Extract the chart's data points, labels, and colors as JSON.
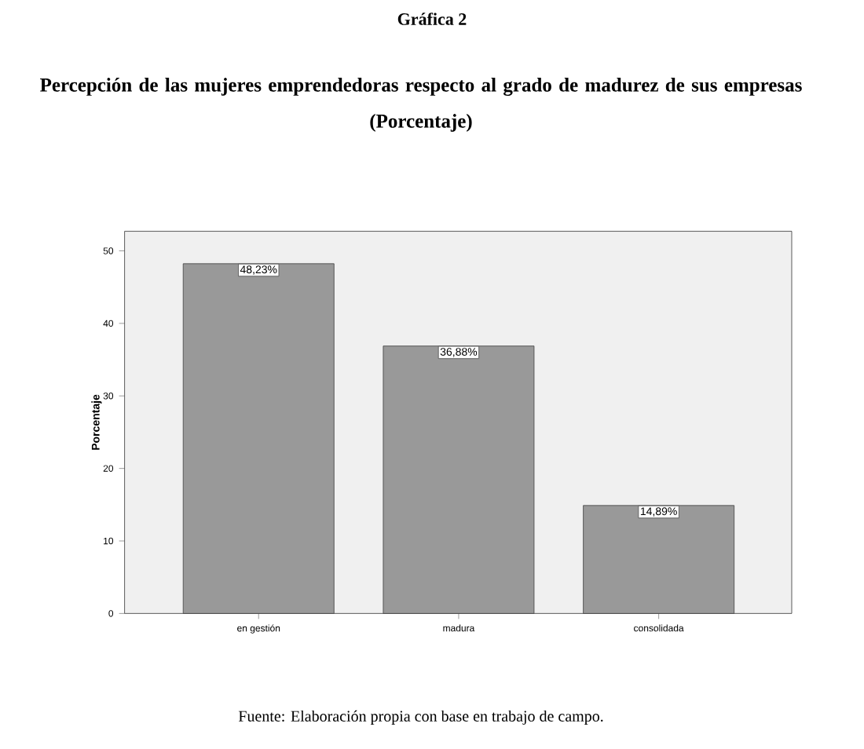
{
  "chart_data": {
    "type": "bar",
    "title": "Percepción de las mujeres emprendedoras respecto al grado de madurez de sus empresas",
    "subtitle": "(Porcentaje)",
    "annotations": [
      "Gráfica 2",
      "Fuente: Elaboración propia con base en trabajo de campo."
    ],
    "ylabel": "Porcentaje",
    "categories": [
      "en gestión",
      "madura",
      "consolidada"
    ],
    "values": [
      48.23,
      36.88,
      14.89
    ],
    "value_labels": [
      "48,23%",
      "36,88%",
      "14,89%"
    ],
    "color": "#999999",
    "ylim": [
      0,
      52.7
    ],
    "yticks": [
      0,
      10,
      20,
      30,
      40,
      50
    ]
  }
}
